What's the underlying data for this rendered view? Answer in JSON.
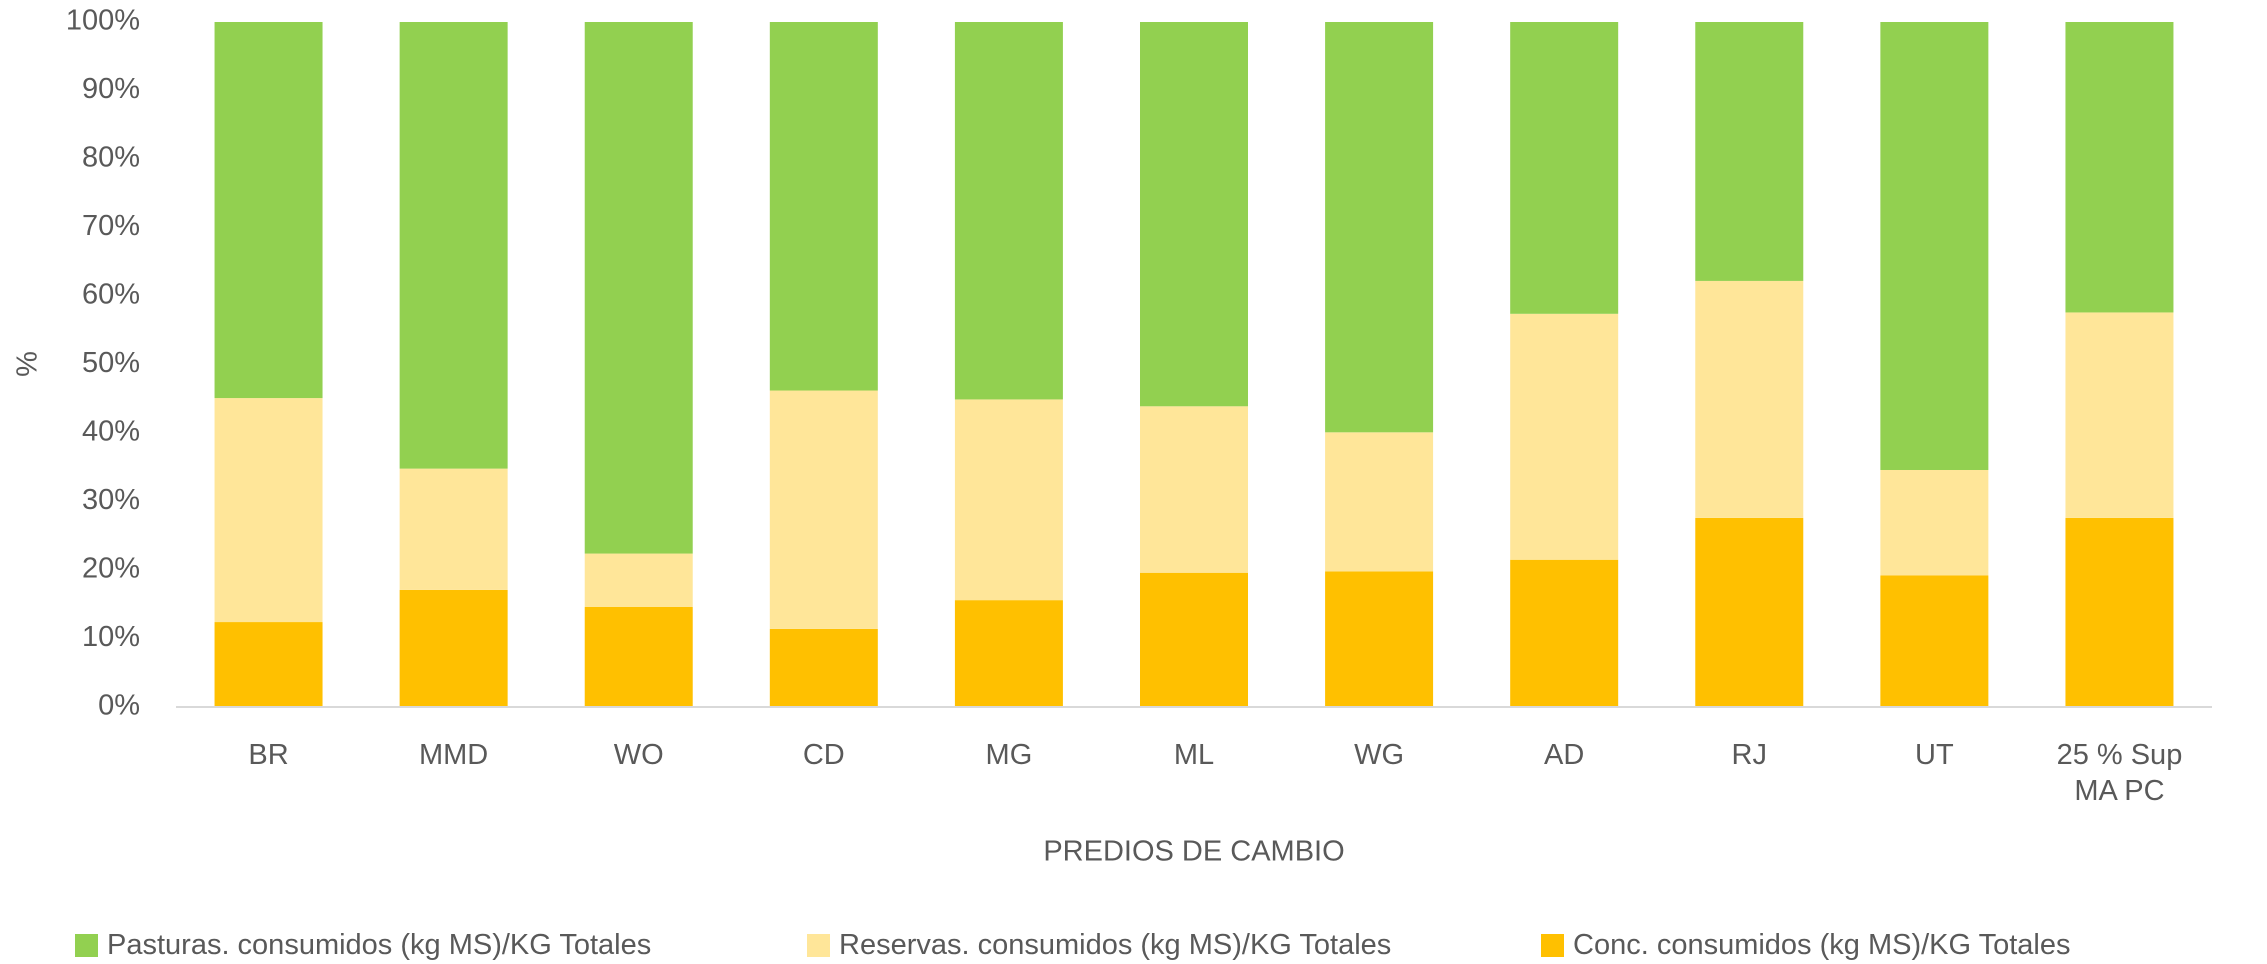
{
  "chart_data": {
    "type": "stacked_bar",
    "xlabel": "PREDIOS DE CAMBIO",
    "ylabel": "%",
    "categories": [
      "BR",
      "MMD",
      "WO",
      "CD",
      "MG",
      "ML",
      "WG",
      "AD",
      "RJ",
      "UT",
      "25 % Sup MA PC"
    ],
    "series": [
      {
        "name": "Pasturas. consumidos (kg MS)/KG Totales",
        "color": "#92d050",
        "values": [
          54.9,
          65.2,
          77.6,
          53.8,
          55.1,
          56.1,
          59.9,
          42.6,
          37.8,
          65.4,
          42.4
        ]
      },
      {
        "name": "Reservas. consumidos (kg MS)/KG Totales",
        "color": "#ffe699",
        "values": [
          32.7,
          17.7,
          7.8,
          34.8,
          29.3,
          24.3,
          20.3,
          35.9,
          34.6,
          15.4,
          30.0
        ]
      },
      {
        "name": "Conc. consumidos (kg MS)/KG Totales",
        "color": "#ffc000",
        "values": [
          12.4,
          17.1,
          14.6,
          11.4,
          15.6,
          19.6,
          19.8,
          21.5,
          27.6,
          19.2,
          27.6
        ]
      }
    ],
    "ylim": [
      0,
      100
    ],
    "yticks": [
      {
        "value": 0,
        "label": "0%"
      },
      {
        "value": 10,
        "label": "10%"
      },
      {
        "value": 20,
        "label": "20%"
      },
      {
        "value": 30,
        "label": "30%"
      },
      {
        "value": 40,
        "label": "40%"
      },
      {
        "value": 50,
        "label": "50%"
      },
      {
        "value": 60,
        "label": "60%"
      },
      {
        "value": 70,
        "label": "70%"
      },
      {
        "value": 80,
        "label": "80%"
      },
      {
        "value": 90,
        "label": "90%"
      },
      {
        "value": 100,
        "label": "100%"
      }
    ],
    "legend": "bottom"
  }
}
